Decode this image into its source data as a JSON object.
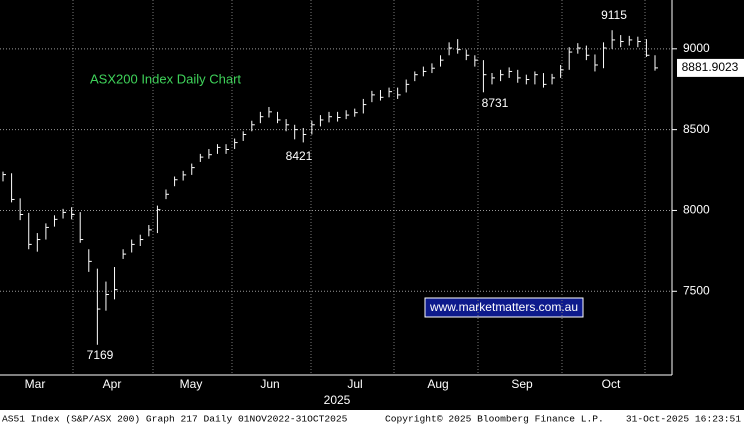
{
  "chart_data": {
    "type": "hlc",
    "title": "ASX200 Index Daily Chart",
    "color": "#ffffff",
    "months": [
      "Mar",
      "Apr",
      "May",
      "Jun",
      "Jul",
      "Aug",
      "Sep",
      "Oct"
    ],
    "year": "2025",
    "ylim": [
      6982,
      9302
    ],
    "yticks": [
      7500,
      8000,
      8500,
      9000
    ],
    "grid": true,
    "high": [
      8240,
      8230,
      8075,
      7985,
      7860,
      7920,
      7970,
      8010,
      8020,
      7990,
      7760,
      7640,
      7560,
      7650,
      7760,
      7820,
      7850,
      7910,
      8030,
      8130,
      8210,
      8245,
      8290,
      8350,
      8380,
      8410,
      8410,
      8445,
      8490,
      8555,
      8610,
      8640,
      8610,
      8565,
      8530,
      8510,
      8555,
      8590,
      8610,
      8610,
      8620,
      8630,
      8690,
      8740,
      8745,
      8760,
      8760,
      8810,
      8860,
      8890,
      8910,
      8960,
      9040,
      9060,
      8995,
      8960,
      8930,
      8850,
      8870,
      8885,
      8870,
      8840,
      8860,
      8850,
      8845,
      8900,
      9010,
      9035,
      9020,
      8965,
      9040,
      9115,
      9085,
      9080,
      9075,
      9060,
      8960
    ],
    "low": [
      8180,
      8050,
      7940,
      7760,
      7745,
      7820,
      7900,
      7950,
      7945,
      7800,
      7620,
      7169,
      7380,
      7450,
      7700,
      7740,
      7780,
      7840,
      7860,
      8070,
      8150,
      8185,
      8220,
      8300,
      8320,
      8350,
      8350,
      8380,
      8430,
      8490,
      8540,
      8575,
      8540,
      8490,
      8440,
      8421,
      8470,
      8520,
      8545,
      8550,
      8565,
      8580,
      8600,
      8670,
      8680,
      8700,
      8690,
      8730,
      8800,
      8830,
      8850,
      8890,
      8960,
      8970,
      8930,
      8890,
      8731,
      8780,
      8800,
      8820,
      8790,
      8780,
      8780,
      8760,
      8780,
      8820,
      8870,
      8970,
      8930,
      8860,
      8880,
      9000,
      9010,
      9020,
      9010,
      8950,
      8865
    ],
    "close": [
      8222,
      8068,
      7975,
      7790,
      7820,
      7895,
      7945,
      7988,
      7975,
      7820,
      7685,
      7390,
      7480,
      7510,
      7730,
      7790,
      7820,
      7880,
      8005,
      8100,
      8190,
      8220,
      8265,
      8330,
      8345,
      8390,
      8377,
      8420,
      8470,
      8530,
      8580,
      8610,
      8560,
      8530,
      8500,
      8470,
      8530,
      8560,
      8580,
      8575,
      8590,
      8605,
      8655,
      8715,
      8700,
      8735,
      8715,
      8780,
      8840,
      8860,
      8880,
      8930,
      9005,
      8995,
      8960,
      8930,
      8840,
      8820,
      8840,
      8860,
      8820,
      8810,
      8840,
      8780,
      8820,
      8870,
      8980,
      9005,
      8960,
      8900,
      9005,
      9055,
      9045,
      9055,
      9045,
      8960,
      8881.9023
    ],
    "annotations": [
      9115,
      8421,
      8731,
      7169
    ],
    "watermark": "www.marketmatters.com.au"
  },
  "footer": {
    "left": "AS51 Index (S&P/ASX 200) Graph 217 Daily 01NOV2022-31OCT2025",
    "center": "Copyright© 2025 Bloomberg Finance L.P.",
    "right": "31-Oct-2025 16:23:51"
  }
}
